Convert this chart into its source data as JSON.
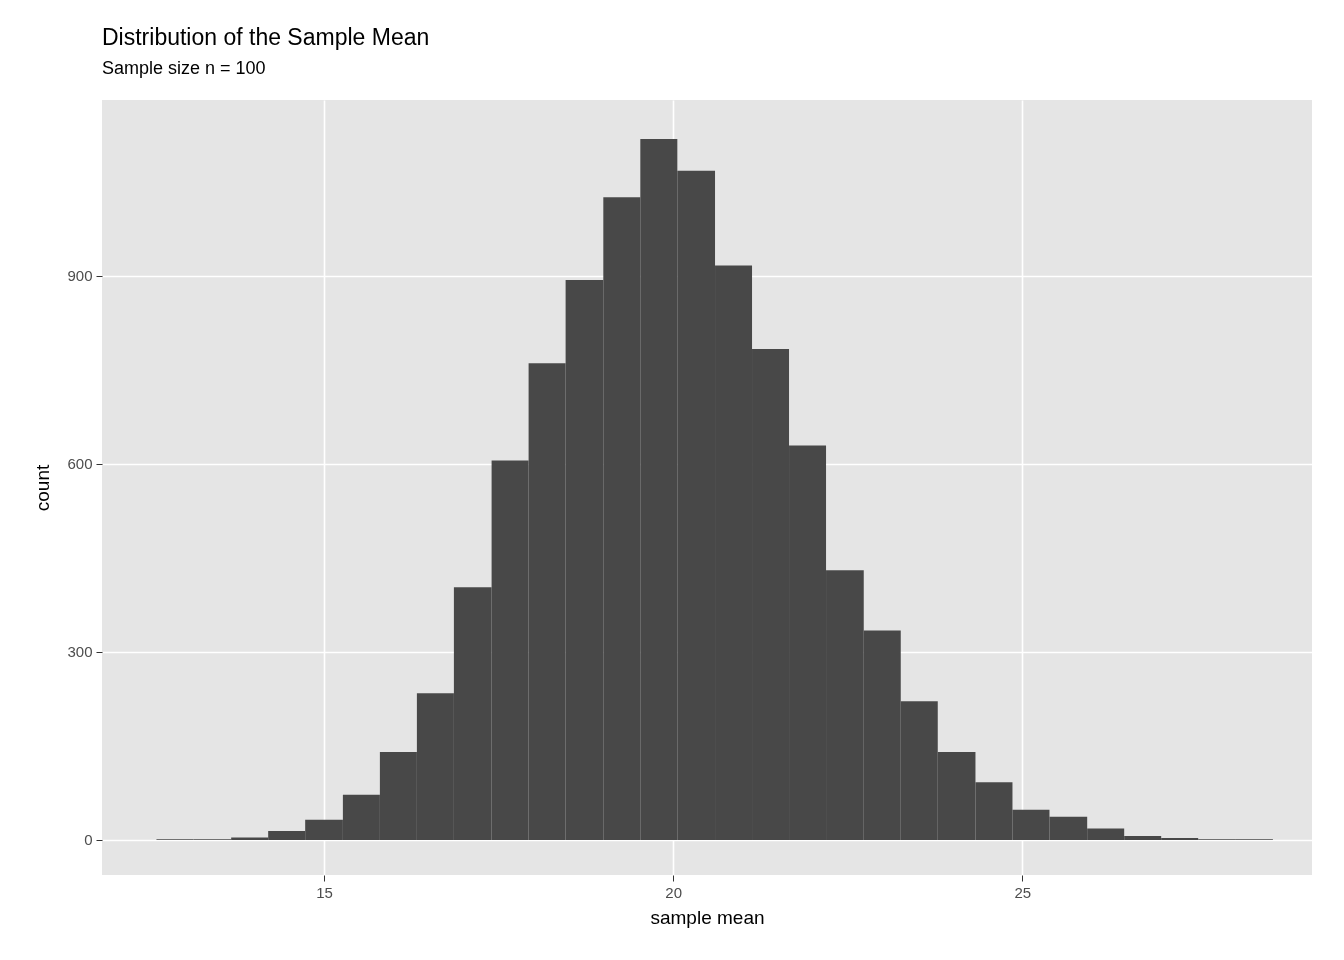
{
  "chart_data": {
    "type": "histogram",
    "title": "Distribution of the Sample Mean",
    "subtitle": "Sample size n = 100",
    "xlabel": "sample mean",
    "ylabel": "count",
    "bins": [
      12.6,
      13.13,
      13.67,
      14.2,
      14.73,
      15.27,
      15.8,
      16.33,
      16.86,
      17.4,
      17.93,
      18.46,
      19.0,
      19.53,
      20.06,
      20.6,
      21.13,
      21.66,
      22.19,
      22.73,
      23.26,
      23.79,
      24.33,
      24.86,
      25.39,
      25.93,
      26.46,
      26.99,
      27.52,
      28.06,
      28.59
    ],
    "values": [
      1,
      1,
      4,
      14,
      32,
      72,
      140,
      234,
      403,
      605,
      760,
      893,
      1025,
      1118,
      1067,
      916,
      783,
      629,
      430,
      334,
      221,
      140,
      92,
      48,
      37,
      18,
      6,
      3,
      1,
      1
    ],
    "color": "#484848",
    "xlim": [
      11.82,
      29.15
    ],
    "xticks": [
      15,
      20,
      25
    ],
    "ylim": [
      -56,
      1180
    ],
    "yticks": [
      0,
      300,
      600,
      900
    ],
    "grid": true
  }
}
